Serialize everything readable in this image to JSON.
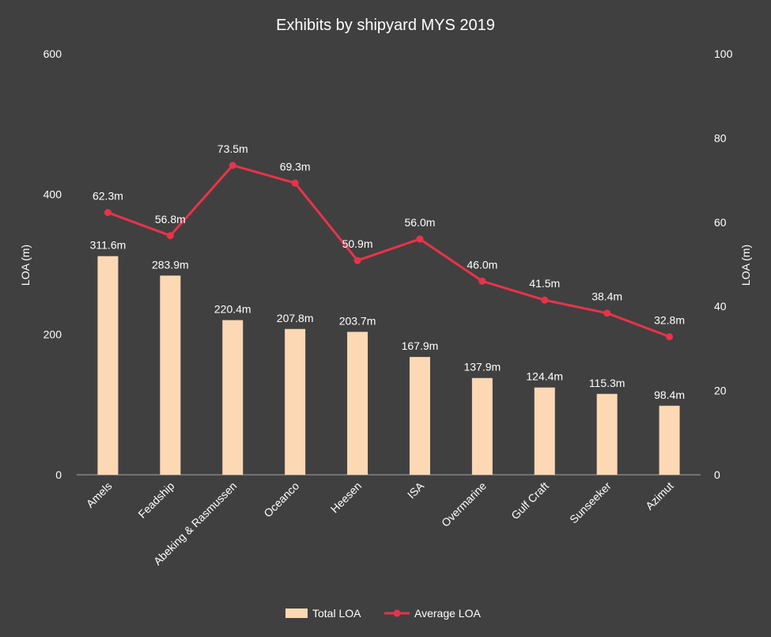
{
  "chart_data": {
    "type": "bar",
    "title": "Exhibits by shipyard MYS 2019",
    "categories": [
      "Amels",
      "Feadship",
      "Abeking & Rasmussen",
      "Oceanco",
      "Heesen",
      "ISA",
      "Overmarine",
      "Gulf Craft",
      "Sunseeker",
      "Azimut"
    ],
    "series": [
      {
        "name": "Total LOA",
        "type": "bar",
        "axis": "left",
        "values": [
          311.6,
          283.9,
          220.4,
          207.8,
          203.7,
          167.9,
          137.9,
          124.4,
          115.3,
          98.4
        ],
        "labels": [
          "311.6m",
          "283.9m",
          "220.4m",
          "207.8m",
          "203.7m",
          "167.9m",
          "137.9m",
          "124.4m",
          "115.3m",
          "98.4m"
        ],
        "color": "#FDD8B5"
      },
      {
        "name": "Average LOA",
        "type": "line",
        "axis": "right",
        "values": [
          62.3,
          56.8,
          73.5,
          69.3,
          50.9,
          56.0,
          46.0,
          41.5,
          38.4,
          32.8
        ],
        "labels": [
          "62.3m",
          "56.8m",
          "73.5m",
          "69.3m",
          "50.9m",
          "56.0m",
          "46.0m",
          "41.5m",
          "38.4m",
          "32.8m"
        ],
        "color": "#E8334A"
      }
    ],
    "y_left": {
      "label": "LOA (m)",
      "range": [
        0,
        600
      ],
      "ticks": [
        "0",
        "200",
        "400",
        "600"
      ]
    },
    "y_right": {
      "label": "LOA (m)",
      "range": [
        0,
        100
      ],
      "ticks": [
        "0",
        "20",
        "40",
        "60",
        "80",
        "100"
      ]
    },
    "grid": false,
    "legend": {
      "position": "bottom",
      "entries": [
        "Total LOA",
        "Average LOA"
      ]
    },
    "colors": {
      "background": "#404040",
      "text": "#FFFFFF",
      "axis": "#A6A6A6"
    }
  }
}
